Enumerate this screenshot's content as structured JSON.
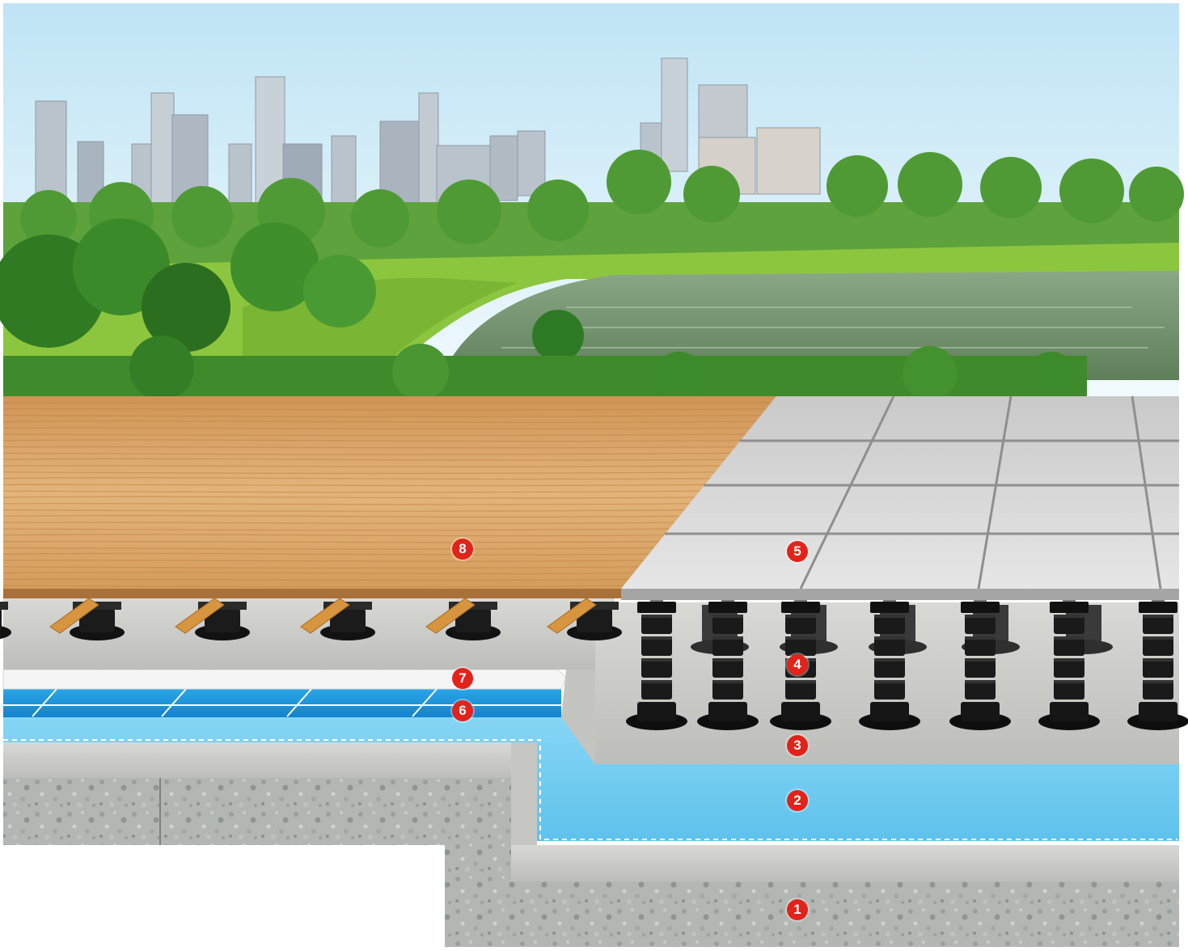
{
  "markers": [
    {
      "id": "m1",
      "label": "1"
    },
    {
      "id": "m2",
      "label": "2"
    },
    {
      "id": "m3",
      "label": "3"
    },
    {
      "id": "m4",
      "label": "4"
    },
    {
      "id": "m5",
      "label": "5"
    },
    {
      "id": "m6",
      "label": "6"
    },
    {
      "id": "m7",
      "label": "7"
    },
    {
      "id": "m8",
      "label": "8"
    }
  ],
  "colors": {
    "sky_top": "#c4e6f6",
    "sky_bottom": "#eef8fc",
    "foliage": "#3f8a2a",
    "lawn": "#8cc63f",
    "water": "#6f8f6a",
    "wood": "#d9a566",
    "tile": "#d2d2d2",
    "pedestal": "#141414",
    "concrete": "#c9c9c6",
    "waterproofing": "#74cdf1",
    "drainage_board": "#1f9be0",
    "protection_sheet": "#f4f4f4",
    "marker": "#e2231a"
  }
}
